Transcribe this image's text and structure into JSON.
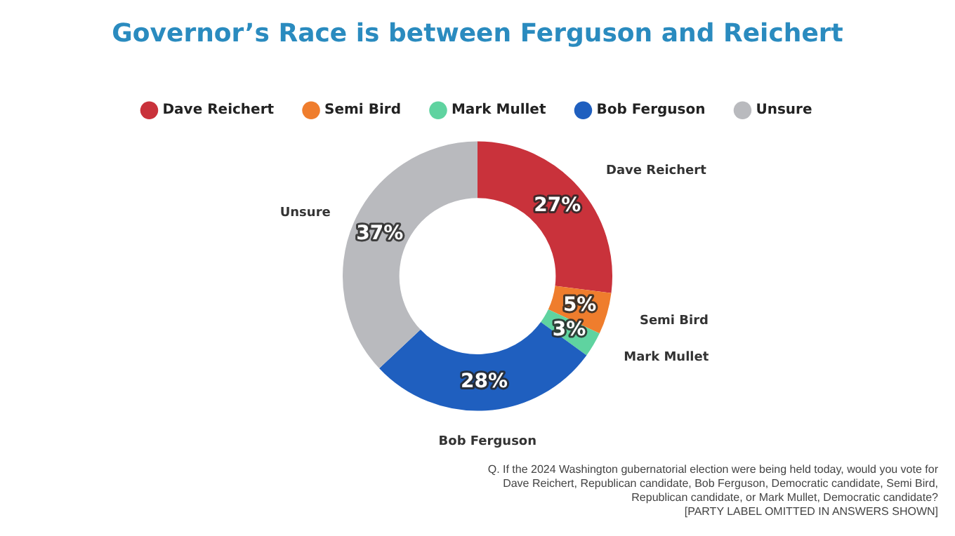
{
  "chart_data": {
    "type": "donut",
    "title": "Governor’s Race is between Ferguson and Reichert",
    "categories": [
      "Dave Reichert",
      "Semi Bird",
      "Mark Mullet",
      "Bob Ferguson",
      "Unsure"
    ],
    "values": [
      27,
      5,
      3,
      28,
      37
    ],
    "value_labels": [
      "27%",
      "5%",
      "3%",
      "28%",
      "37%"
    ],
    "colors": [
      "#c9323b",
      "#ef7d2d",
      "#5fd3a0",
      "#1f5fbf",
      "#b9babe"
    ],
    "legend": "top",
    "annotations": [
      "Q. If the 2024 Washington gubernatorial election were being held today, would you vote for Dave Reichert, Republican candidate, Bob Ferguson, Democratic candidate, Semi Bird, Republican candidate, or Mark Mullet, Democratic candidate?",
      "[PARTY LABEL OMITTED IN ANSWERS SHOWN]"
    ]
  }
}
